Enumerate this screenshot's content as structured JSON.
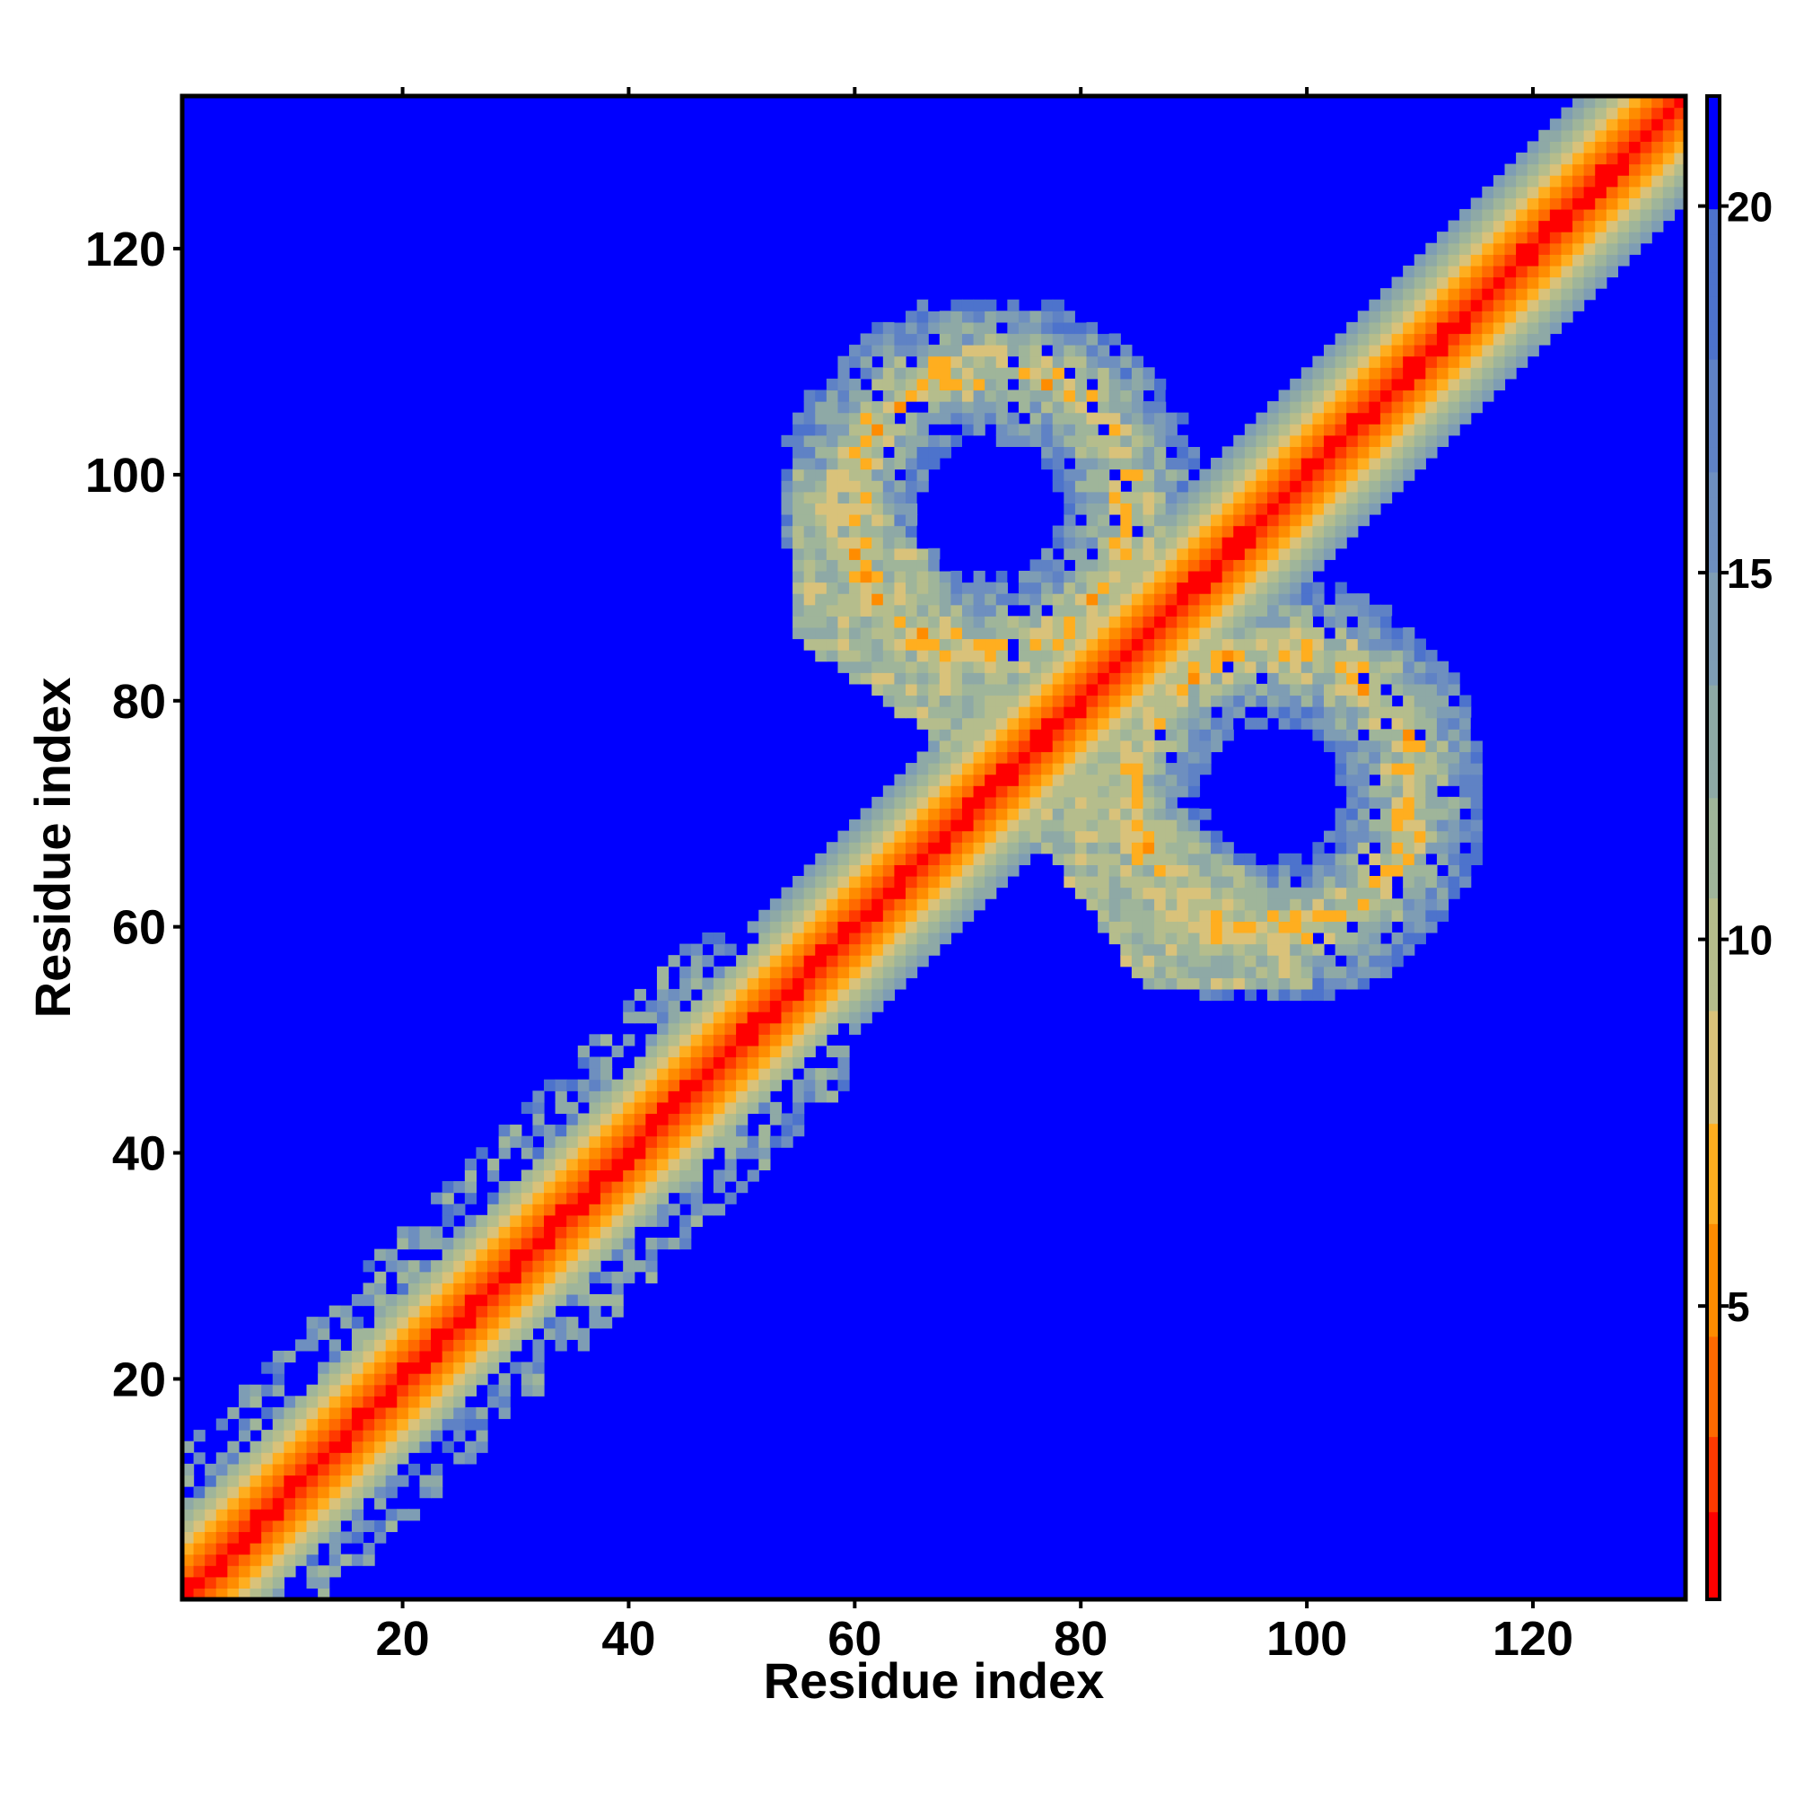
{
  "chart_data": {
    "type": "heatmap",
    "title": "",
    "xlabel": "Residue index",
    "ylabel": "Residue index",
    "n_residues": 133,
    "xlim": [
      1,
      133
    ],
    "ylim": [
      1,
      133
    ],
    "x_ticks": [
      20,
      40,
      60,
      80,
      100,
      120
    ],
    "y_ticks": [
      20,
      40,
      60,
      80,
      100,
      120
    ],
    "colorbar": {
      "range": [
        1,
        21.5
      ],
      "ticks": [
        5,
        10,
        15,
        20
      ],
      "colors": [
        "#ff0000",
        "#ff8a00",
        "#e0c266",
        "#a9b98f",
        "#7f9ab2",
        "#5e7fc9",
        "#0000ff"
      ]
    },
    "structure": {
      "diagonal_band": "distances increase from ~1 on the main diagonal to ~12 at |i-j|≈8",
      "long_range_contacts": [
        {
          "region": "ring",
          "center_x": 72,
          "center_y": 97,
          "radius": 12,
          "description": "contacts between residues ~55-90 and ~80-120"
        },
        {
          "region": "ring",
          "center_y": 72,
          "center_x": 97,
          "radius": 12,
          "description": "symmetric counterpart"
        },
        {
          "region": "anti-diagonal strand",
          "from": [
            60,
            83
          ],
          "to": [
            83,
            60
          ],
          "description": "contacts near residues 60-90"
        }
      ],
      "background_value": 21.5
    }
  }
}
